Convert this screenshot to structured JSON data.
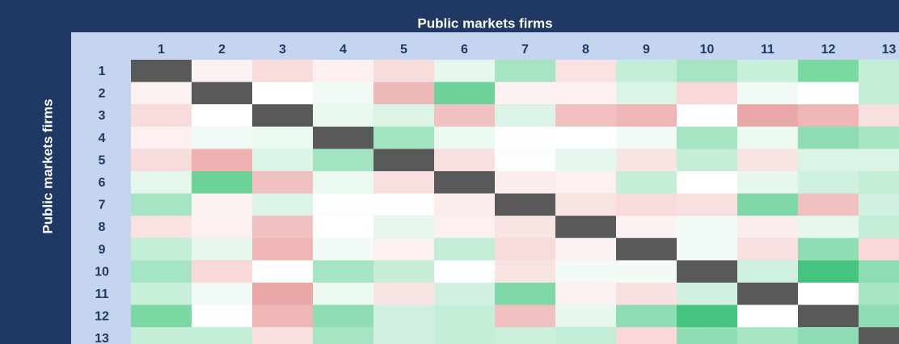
{
  "table": {
    "title": "Public markets firms",
    "row_title": "Public markets firms",
    "columns": [
      "1",
      "2",
      "3",
      "4",
      "5",
      "6",
      "7",
      "8",
      "9",
      "10",
      "11",
      "12",
      "13"
    ],
    "rows": [
      {
        "label": "1",
        "colors": [
          "#595959",
          "#fdf2f2",
          "#f8dcdc",
          "#fdf0f0",
          "#f8dcdc",
          "#e6f7ee",
          "#a6e5c3",
          "#f9e2e2",
          "#c4eed7",
          "#a6e5c3",
          "#c8efd9",
          "#7ad8a3",
          "#c4eed7"
        ]
      },
      {
        "label": "2",
        "colors": [
          "#fdf2f2",
          "#595959",
          "#ffffff",
          "#f1faf5",
          "#efb8b8",
          "#6dd39a",
          "#fdf2f2",
          "#fdf0f0",
          "#dcf4e6",
          "#f8d8d8",
          "#f1faf5",
          "#fbfefc",
          "#c4eed7"
        ]
      },
      {
        "label": "3",
        "colors": [
          "#f8dcdc",
          "#ffffff",
          "#595959",
          "#eaf8f0",
          "#dcf4e6",
          "#f1c0c0",
          "#dcf4e6",
          "#f1c0c0",
          "#efb6b6",
          "#ffffff",
          "#eaa7a7",
          "#efb6b6",
          "#f9e0e0"
        ]
      },
      {
        "label": "4",
        "colors": [
          "#fdf0f0",
          "#f3fbf6",
          "#ecf9f1",
          "#595959",
          "#a3e4c0",
          "#ecf9f1",
          "#fbfefc",
          "#ffffff",
          "#f3fbf6",
          "#a6e5c3",
          "#ecf9f1",
          "#8fddb2",
          "#a6e5c3"
        ]
      },
      {
        "label": "5",
        "colors": [
          "#f8dcdc",
          "#eeb0b0",
          "#dcf4e6",
          "#a3e4c0",
          "#595959",
          "#f9e0e0",
          "#fbfefc",
          "#e6f7ee",
          "#f9e4e4",
          "#c4eed7",
          "#f9e4e4",
          "#dcf4e6",
          "#dcf4e6"
        ]
      },
      {
        "label": "6",
        "colors": [
          "#e6f7ee",
          "#6dd39a",
          "#f1c0c0",
          "#ecf9f1",
          "#f9e0e0",
          "#595959",
          "#fdecec",
          "#fdf0f0",
          "#c4eed7",
          "#ffffff",
          "#e6f7ee",
          "#d1f1e0",
          "#c4eed7"
        ]
      },
      {
        "label": "7",
        "colors": [
          "#a6e5c3",
          "#fdf2f2",
          "#dcf4e6",
          "#fbfefc",
          "#fbfefc",
          "#fdecec",
          "#595959",
          "#f9e4e4",
          "#f8dcdc",
          "#f9e0e0",
          "#7ed9a6",
          "#f1c0c0",
          "#d1f1e0"
        ]
      },
      {
        "label": "8",
        "colors": [
          "#f9e2e2",
          "#fdf0f0",
          "#f1c0c0",
          "#ffffff",
          "#e6f7ee",
          "#fdf0f0",
          "#f9e4e4",
          "#595959",
          "#fdf2f2",
          "#f3fbf6",
          "#fdecec",
          "#e6f7ee",
          "#c4eed7"
        ]
      },
      {
        "label": "9",
        "colors": [
          "#c4eed7",
          "#e6f7ee",
          "#efb6b6",
          "#f3fbf6",
          "#fdf0f0",
          "#c4eed7",
          "#f8dcdc",
          "#fdf2f2",
          "#595959",
          "#f3fbf6",
          "#f9e0e0",
          "#8fddb2",
          "#f8d8d8"
        ]
      },
      {
        "label": "10",
        "colors": [
          "#a6e5c3",
          "#f8d8d8",
          "#ffffff",
          "#a6e5c3",
          "#c4eed7",
          "#ffffff",
          "#f9e4e4",
          "#f3fbf6",
          "#f3fbf6",
          "#595959",
          "#d1f1e0",
          "#44c47e",
          "#8fddb2"
        ]
      },
      {
        "label": "11",
        "colors": [
          "#c8efd9",
          "#f1faf5",
          "#eaa7a7",
          "#ecf9f1",
          "#f9e4e4",
          "#d1f1e0",
          "#7ed9a6",
          "#fdf2f2",
          "#f9e0e0",
          "#d1f1e0",
          "#595959",
          "#ffffff",
          "#a6e5c3"
        ]
      },
      {
        "label": "12",
        "colors": [
          "#7ad8a3",
          "#fbfefc",
          "#efb6b6",
          "#8fddb2",
          "#d1f1e0",
          "#c4eed7",
          "#f1c0c0",
          "#e6f7ee",
          "#8fddb2",
          "#44c47e",
          "#ffffff",
          "#595959",
          "#8fddb2"
        ]
      },
      {
        "label": "13",
        "colors": [
          "#c4eed7",
          "#c4eed7",
          "#f9e0e0",
          "#a6e5c3",
          "#d1f1e0",
          "#c4eed7",
          "#cdf0dd",
          "#c4eed7",
          "#f8d8d8",
          "#8fddb2",
          "#a6e5c3",
          "#8fddb2",
          "#595959"
        ]
      }
    ]
  }
}
